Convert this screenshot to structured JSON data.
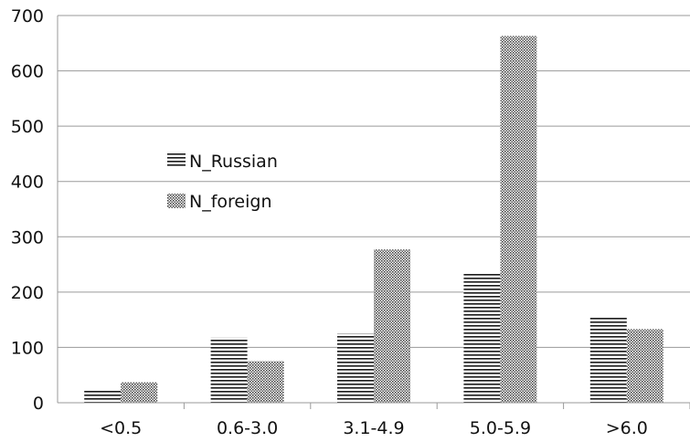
{
  "chart_data": {
    "type": "bar",
    "categories": [
      "<0.5",
      "0.6-3.0",
      "3.1-4.9",
      "5.0-5.9",
      ">6.0"
    ],
    "series": [
      {
        "name": "N_Russian",
        "values": [
          22,
          118,
          125,
          234,
          154
        ],
        "pattern": "horizontal-lines"
      },
      {
        "name": "N_foreign",
        "values": [
          37,
          75,
          277,
          663,
          133
        ],
        "pattern": "dots"
      }
    ],
    "ylim": [
      0,
      700
    ],
    "yticks": [
      "0",
      "100",
      "200",
      "300",
      "400",
      "500",
      "600",
      "700"
    ],
    "grid": true,
    "legend_position": "left-middle",
    "colors": {
      "bar": "#1a1a1a",
      "grid": "#9a9a9a",
      "text": "#111111"
    }
  }
}
